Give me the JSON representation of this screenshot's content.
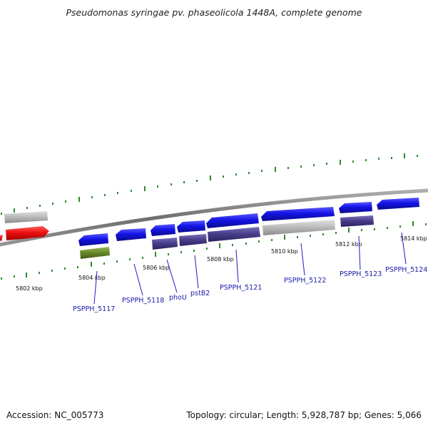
{
  "title": "Pseudomonas syringae pv. phaseolicola 1448A, complete genome",
  "accession": "Accession: NC_005773",
  "topology": "Topology: circular; Length: 5,928,787 bp; Genes: 5,066",
  "colors": {
    "backbone": "#7a7a7a",
    "tick": "#2f8a2f",
    "gene_blue": "#1414e6",
    "gene_purple": "#4a3f8c",
    "gene_gray": "#bdbdbd",
    "gene_red": "#ee1111",
    "gene_green": "#6b8c2a",
    "label": "#1a1aaa"
  },
  "ruler": {
    "kbp_labels": [
      "5802 kbp",
      "5804 kbp",
      "5806 kbp",
      "5808 kbp",
      "5810 kbp",
      "5812 kbp",
      "5814 kbp"
    ]
  },
  "genes": {
    "labels": [
      "PSPPH_5117",
      "PSPPH_5118",
      "phoU",
      "pstB2",
      "PSPPH_5121",
      "PSPPH_5122",
      "PSPPH_5123",
      "PSPPH_5124"
    ]
  }
}
